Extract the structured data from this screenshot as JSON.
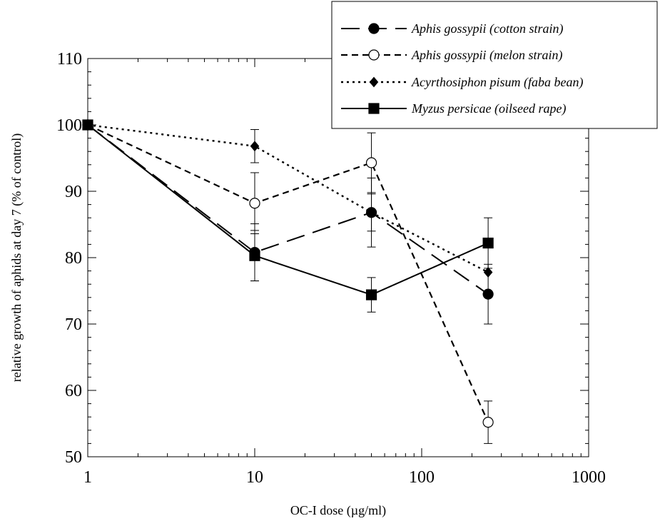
{
  "chart_data": {
    "type": "line",
    "title": "",
    "xlabel": "OC-I dose (µg/ml)",
    "ylabel": "relative growth of aphids at day 7 (% of control)",
    "x_scale": "log",
    "xlim": [
      1,
      1000
    ],
    "ylim": [
      50,
      110
    ],
    "x_ticks": [
      1,
      10,
      100,
      1000
    ],
    "x_tick_labels": [
      "1",
      "10",
      "100",
      "1000"
    ],
    "y_ticks": [
      50,
      60,
      70,
      80,
      90,
      100,
      110
    ],
    "y_tick_labels": [
      "50",
      "60",
      "70",
      "80",
      "90",
      "100",
      "110"
    ],
    "grid": false,
    "legend_position": "top-right",
    "series": [
      {
        "name": "Aphis gossypii (cotton strain)",
        "line": "long-dash",
        "marker": "filled-circle",
        "x": [
          1,
          10,
          50,
          250
        ],
        "y": [
          100,
          80.8,
          86.8,
          74.5
        ],
        "err": [
          0,
          4.3,
          5.2,
          4.5
        ]
      },
      {
        "name": "Aphis gossypii (melon strain)",
        "line": "short-dash",
        "marker": "open-circle",
        "x": [
          1,
          10,
          50,
          250
        ],
        "y": [
          100,
          88.2,
          94.3,
          55.2
        ],
        "err": [
          0,
          4.6,
          4.5,
          3.2
        ]
      },
      {
        "name": "Acyrthosiphon pisum (faba bean)",
        "line": "dotted",
        "marker": "filled-diamond",
        "x": [
          1,
          10,
          50,
          250
        ],
        "y": [
          100,
          96.8,
          86.8,
          77.8
        ],
        "err": [
          0,
          2.5,
          2.8,
          0
        ]
      },
      {
        "name": "Myzus persicae (oilseed rape)",
        "line": "solid",
        "marker": "filled-square",
        "x": [
          1,
          10,
          50,
          250
        ],
        "y": [
          100,
          80.3,
          74.4,
          82.2
        ],
        "err": [
          0,
          3.8,
          2.6,
          3.8
        ]
      }
    ]
  }
}
